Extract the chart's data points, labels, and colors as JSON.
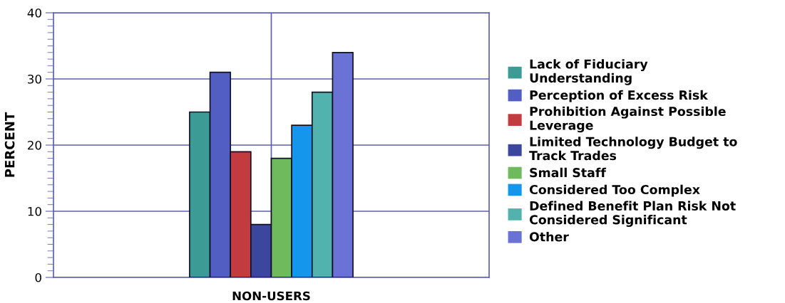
{
  "chart_data": {
    "type": "bar",
    "ylabel": "PERCENT",
    "categories": [
      "NON-USERS"
    ],
    "series": [
      {
        "name": "Lack of Fiduciary Understanding",
        "color": "#3d9b96",
        "values": [
          25
        ]
      },
      {
        "name": "Perception of Excess Risk",
        "color": "#525ec2",
        "values": [
          31
        ]
      },
      {
        "name": "Prohibition Against Possible Leverage",
        "color": "#c23b3e",
        "values": [
          19
        ]
      },
      {
        "name": "Limited Technology Budget to Track Trades",
        "color": "#3c469e",
        "values": [
          8
        ]
      },
      {
        "name": "Small Staff",
        "color": "#6fba5c",
        "values": [
          18
        ]
      },
      {
        "name": "Considered Too Complex",
        "color": "#1496ed",
        "values": [
          23
        ]
      },
      {
        "name": "Defined Benefit Plan Risk Not Considered Significant",
        "color": "#52b2ad",
        "values": [
          28
        ]
      },
      {
        "name": "Other",
        "color": "#6a72d6",
        "values": [
          34
        ]
      }
    ],
    "ylim": [
      0,
      40
    ],
    "yticks": [
      0,
      10,
      20,
      30,
      40
    ],
    "grid": true,
    "legend": "right"
  }
}
